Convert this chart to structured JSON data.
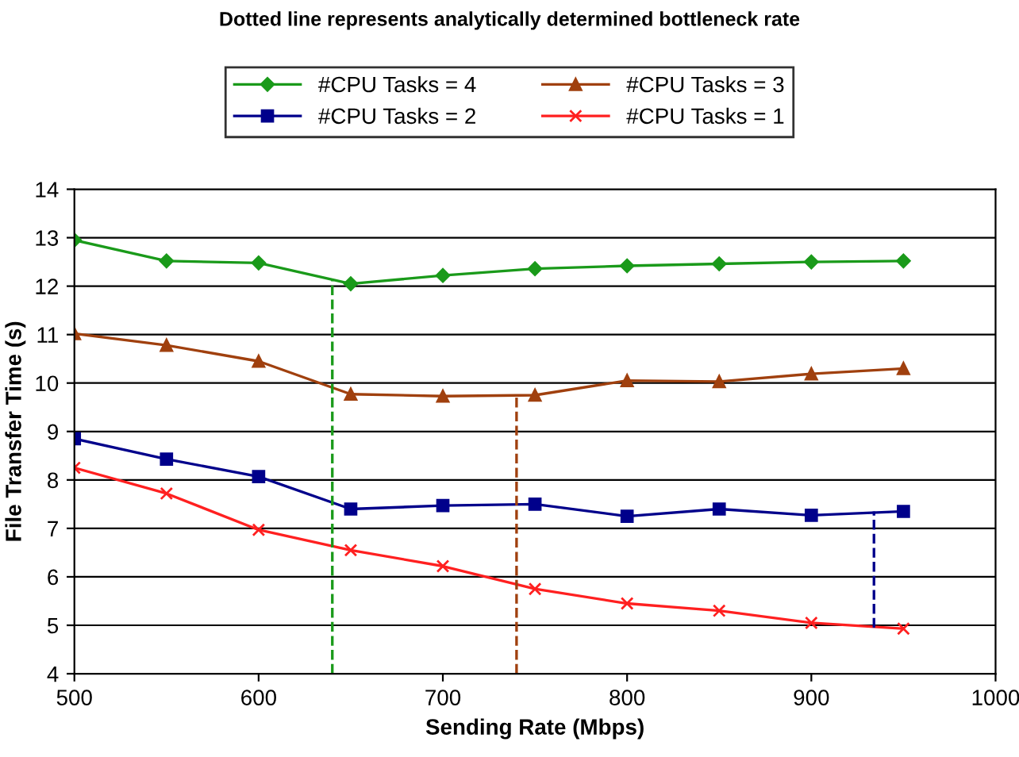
{
  "chart_data": {
    "type": "line",
    "title": "Dotted line represents analytically determined bottleneck rate",
    "xlabel": "Sending Rate (Mbps)",
    "ylabel": "File Transfer Time (s)",
    "x": [
      500,
      550,
      600,
      650,
      700,
      750,
      800,
      850,
      900,
      950
    ],
    "series": [
      {
        "name": "#CPU Tasks = 4",
        "color": "#1a9a1a",
        "marker": "diamond",
        "values": [
          12.95,
          12.52,
          12.48,
          12.05,
          12.22,
          12.36,
          12.42,
          12.46,
          12.5,
          12.52
        ]
      },
      {
        "name": "#CPU Tasks = 3",
        "color": "#a0400e",
        "marker": "triangle",
        "values": [
          11.02,
          10.78,
          10.45,
          9.77,
          9.73,
          9.75,
          10.05,
          10.03,
          10.19,
          10.3
        ]
      },
      {
        "name": "#CPU Tasks = 2",
        "color": "#00008b",
        "marker": "square",
        "values": [
          8.85,
          8.43,
          8.07,
          7.4,
          7.47,
          7.5,
          7.25,
          7.4,
          7.27,
          7.35
        ]
      },
      {
        "name": "#CPU Tasks = 1",
        "color": "#ff2020",
        "marker": "cross",
        "values": [
          8.25,
          7.72,
          6.97,
          6.55,
          6.22,
          5.75,
          5.45,
          5.3,
          5.05,
          4.93
        ]
      },
      {
        "color": "#1a9a1a",
        "marker": "none",
        "line_style": "dashed",
        "x": [
          640,
          640
        ],
        "values": [
          4,
          12.15
        ]
      },
      {
        "color": "#a0400e",
        "marker": "none",
        "line_style": "dashed",
        "x": [
          740,
          740
        ],
        "values": [
          4,
          9.75
        ]
      },
      {
        "color": "#00008b",
        "marker": "none",
        "line_style": "dashed",
        "x": [
          934,
          934
        ],
        "values": [
          4.95,
          7.35
        ]
      }
    ],
    "xlim": [
      500,
      1000
    ],
    "xticks": [
      500,
      600,
      700,
      800,
      900,
      1000
    ],
    "ylim": [
      4,
      14
    ],
    "yticks": [
      4,
      5,
      6,
      7,
      8,
      9,
      10,
      11,
      12,
      13,
      14
    ],
    "grid": "y",
    "legend": "top"
  }
}
